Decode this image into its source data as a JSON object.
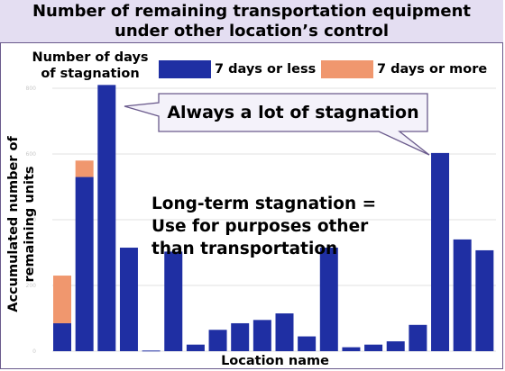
{
  "title_line1": "Number of remaining transportation equipment",
  "title_line2": "under other location’s control",
  "callout": "Always a lot of stagnation",
  "annotation": {
    "line1": "Long-term stagnation =",
    "line2": "Use for purposes other",
    "line3": "than transportation"
  },
  "chart_data": {
    "type": "bar",
    "stacked": true,
    "xlabel": "Location name",
    "ylabel": "Accumulated number of remaining units",
    "legend_title_line1": "Number of days",
    "legend_title_line2": "of stagnation",
    "ylim": [
      0,
      1000
    ],
    "yticks": [
      0,
      200,
      400,
      600,
      800
    ],
    "ytick_labels": [
      "0",
      "200",
      "400",
      "600",
      "800"
    ],
    "grid": true,
    "legend_position": "top",
    "series": [
      {
        "name": "7 days or less",
        "color": "#1f2fa3",
        "values": [
          85,
          530,
          810,
          315,
          2,
          303,
          20,
          65,
          85,
          95,
          115,
          45,
          315,
          12,
          20,
          30,
          80,
          603,
          340,
          307
        ]
      },
      {
        "name": "7 days or more",
        "color": "#f0976e",
        "values": [
          145,
          50,
          0,
          0,
          0,
          0,
          0,
          0,
          0,
          0,
          0,
          0,
          0,
          0,
          0,
          0,
          0,
          0,
          0,
          0
        ]
      }
    ]
  }
}
